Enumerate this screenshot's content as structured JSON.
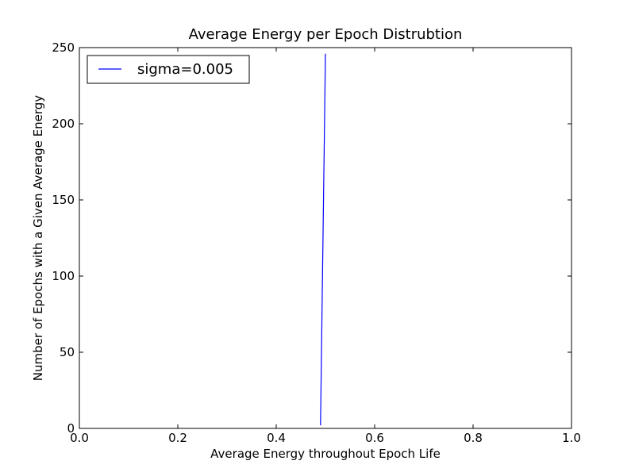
{
  "chart_data": {
    "type": "line",
    "title": "Average Energy per Epoch Distrubtion",
    "xlabel": "Average Energy throughout Epoch Life",
    "ylabel": "Number of Epochs with a Given Average Energy",
    "xlim": [
      0.0,
      1.0
    ],
    "ylim": [
      0,
      250
    ],
    "xticks": [
      "0.0",
      "0.2",
      "0.4",
      "0.6",
      "0.8",
      "1.0"
    ],
    "yticks": [
      "0",
      "50",
      "100",
      "150",
      "200",
      "250"
    ],
    "grid": false,
    "legend_position": "top-left",
    "series": [
      {
        "name": "sigma=0.005",
        "color": "#0000ff",
        "x": [
          0.49,
          0.5
        ],
        "y": [
          2,
          246
        ]
      }
    ]
  }
}
